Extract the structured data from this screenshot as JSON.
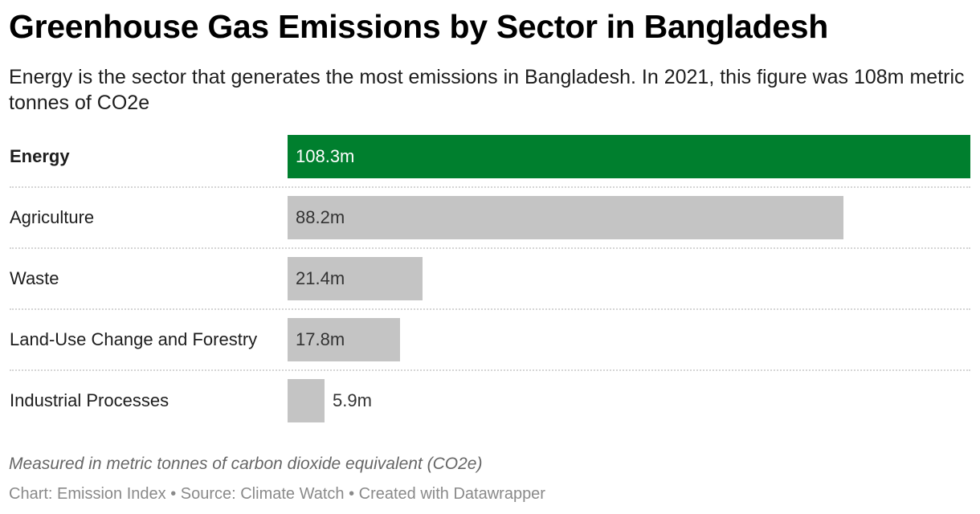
{
  "header": {
    "title": "Greenhouse Gas Emissions by Sector in Bangladesh",
    "subtitle": "Energy is the sector that generates the most emissions in Bangladesh. In 2021, this figure was 108m metric tonnes of CO2e"
  },
  "colors": {
    "highlight": "#007f2e",
    "default_bar": "#c4c4c4"
  },
  "rows": [
    {
      "label": "Energy",
      "value": 108.3,
      "value_label": "108.3m",
      "highlight": true
    },
    {
      "label": "Agriculture",
      "value": 88.2,
      "value_label": "88.2m",
      "highlight": false
    },
    {
      "label": "Waste",
      "value": 21.4,
      "value_label": "21.4m",
      "highlight": false
    },
    {
      "label": "Land-Use Change and Forestry",
      "value": 17.8,
      "value_label": "17.8m",
      "highlight": false
    },
    {
      "label": "Industrial Processes",
      "value": 5.9,
      "value_label": "5.9m",
      "highlight": false
    }
  ],
  "footer": {
    "notes": "Measured in metric tonnes of carbon dioxide equivalent (CO2e)",
    "source": "Chart: Emission Index • Source: Climate Watch • Created with Datawrapper"
  },
  "chart_data": {
    "type": "bar",
    "orientation": "horizontal",
    "title": "Greenhouse Gas Emissions by Sector in Bangladesh",
    "subtitle": "Energy is the sector that generates the most emissions in Bangladesh. In 2021, this figure was 108m metric tonnes of CO2e",
    "categories": [
      "Energy",
      "Agriculture",
      "Waste",
      "Land-Use Change and Forestry",
      "Industrial Processes"
    ],
    "values": [
      108.3,
      88.2,
      21.4,
      17.8,
      5.9
    ],
    "value_labels": [
      "108.3m",
      "88.2m",
      "21.4m",
      "17.8m",
      "5.9m"
    ],
    "unit": "metric tonnes of CO2e (millions)",
    "xlabel": "",
    "ylabel": "",
    "xlim": [
      0,
      108.3
    ],
    "grid": false,
    "legend": null,
    "highlighted_category": "Energy",
    "notes": "Measured in metric tonnes of carbon dioxide equivalent (CO2e)",
    "source": "Chart: Emission Index • Source: Climate Watch • Created with Datawrapper"
  }
}
